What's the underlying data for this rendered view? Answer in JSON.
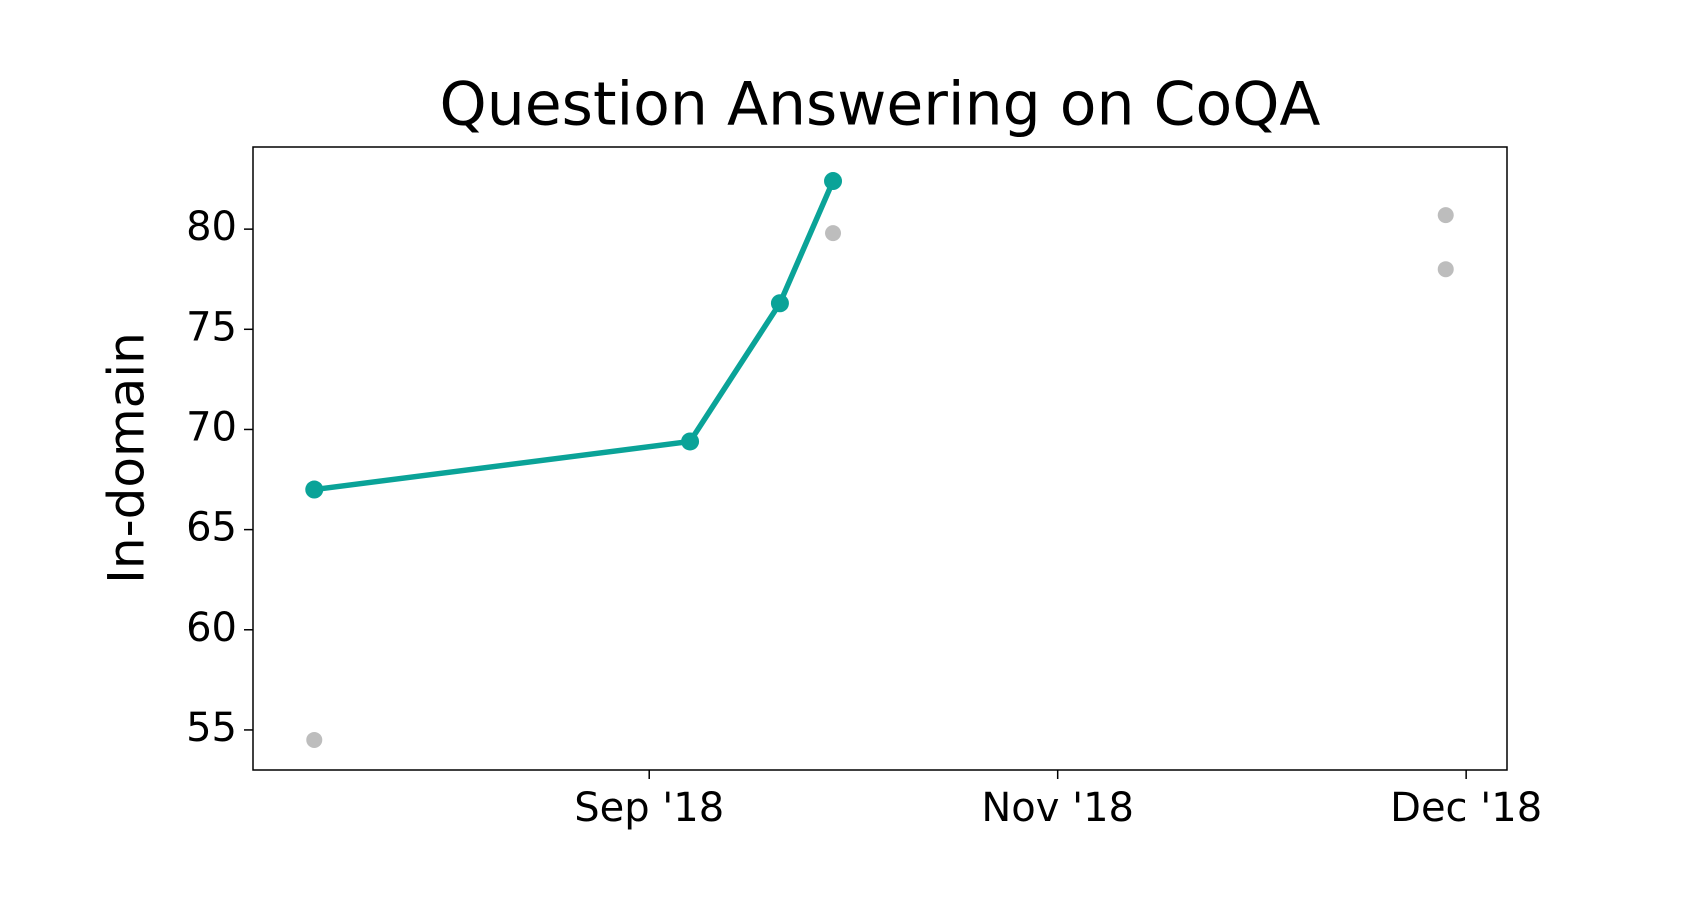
{
  "chart_data": {
    "type": "line",
    "title": "Question Answering on CoQA",
    "y_label": "In-domain",
    "series": [
      {
        "color": "#0aa398",
        "style": "line",
        "x": [
          -0.82,
          0.1,
          0.32,
          0.45
        ],
        "values": [
          67.0,
          69.4,
          76.3,
          82.4
        ]
      },
      {
        "color": "#bdbdbd",
        "style": "markers",
        "x": [
          -0.82,
          0.45,
          1.95,
          1.95
        ],
        "values": [
          54.5,
          79.8,
          80.7,
          78.0
        ]
      }
    ],
    "xlim": [
      -0.97,
      2.1
    ],
    "xticks": [
      {
        "value": 0,
        "label": "Sep '18"
      },
      {
        "value": 1,
        "label": "Nov '18"
      },
      {
        "value": 2,
        "label": "Dec '18"
      }
    ],
    "ylim": [
      53,
      84.1
    ],
    "yticks": [
      55,
      60,
      65,
      70,
      75,
      80
    ],
    "grid": false
  }
}
